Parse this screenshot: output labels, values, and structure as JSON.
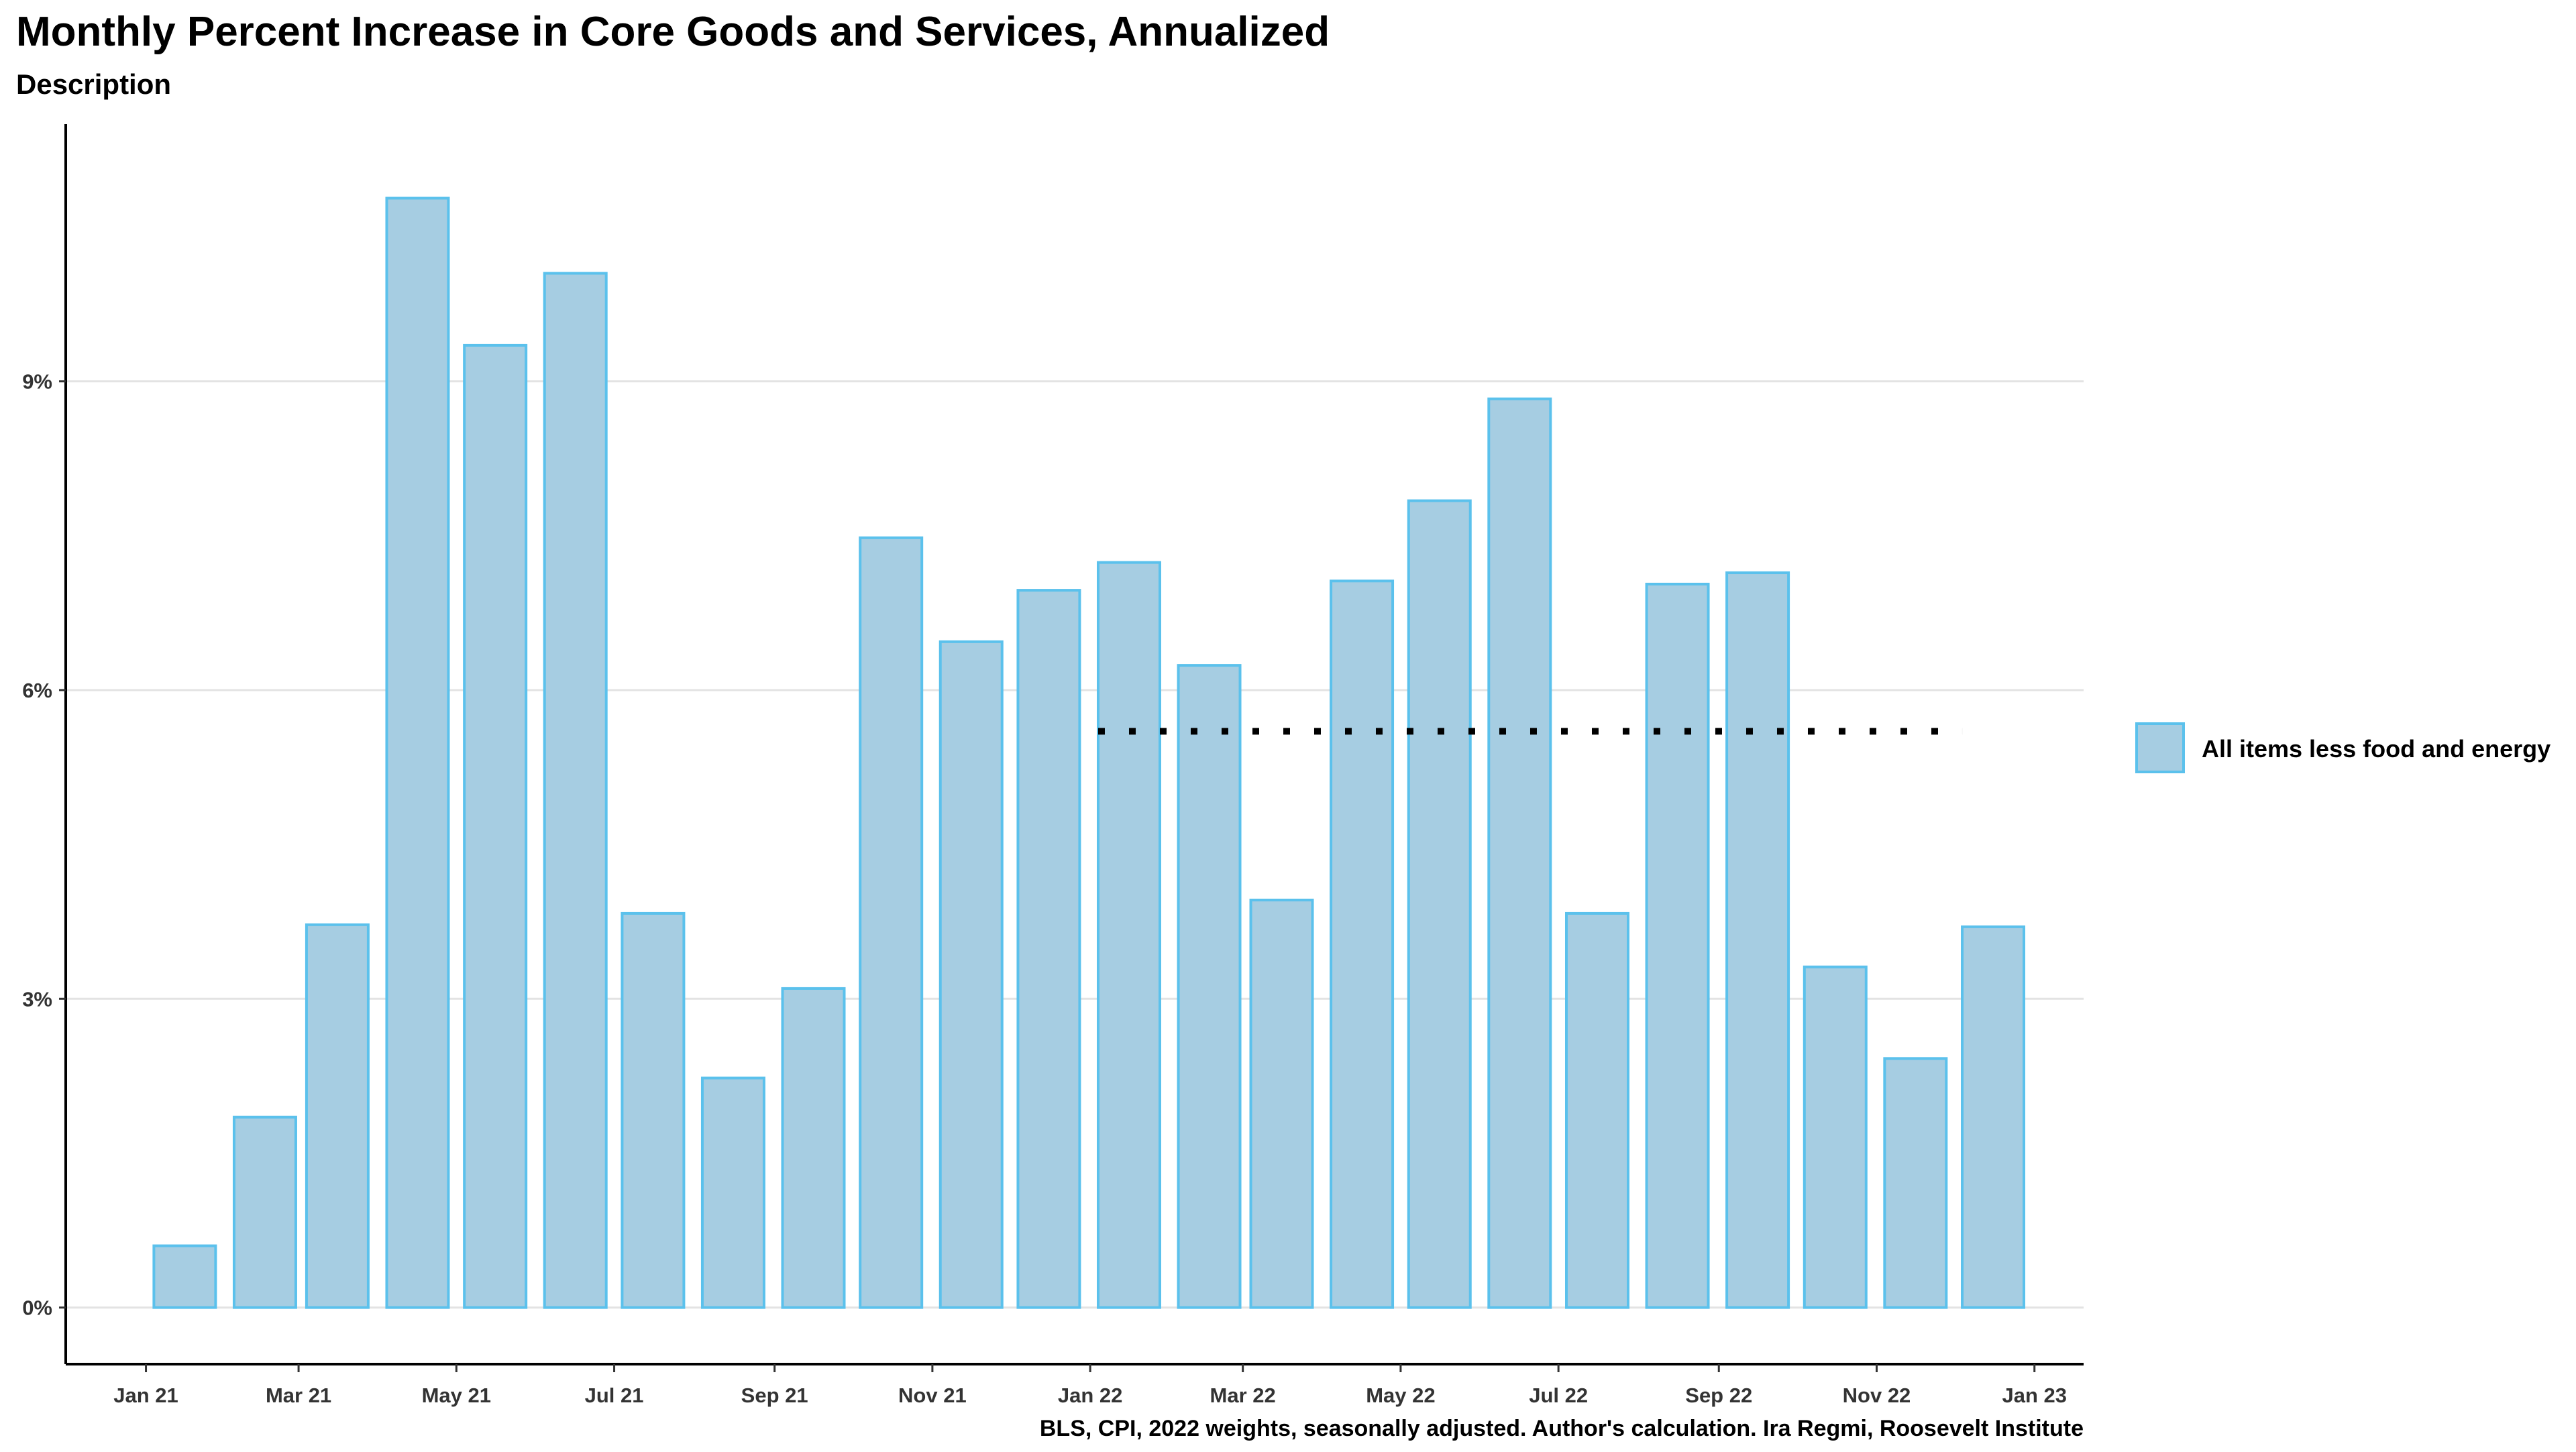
{
  "chart_data": {
    "type": "bar",
    "title": "Monthly Percent Increase in Core Goods and Services, Annualized",
    "subtitle": "Description",
    "caption": "BLS, CPI, 2022 weights, seasonally adjusted. Author's calculation. Ira Regmi, Roosevelt Institute",
    "xlabel": "",
    "ylabel": "",
    "categories": [
      "2021-01",
      "2021-02",
      "2021-03",
      "2021-04",
      "2021-05",
      "2021-06",
      "2021-07",
      "2021-08",
      "2021-09",
      "2021-10",
      "2021-11",
      "2021-12",
      "2022-01",
      "2022-02",
      "2022-03",
      "2022-04",
      "2022-05",
      "2022-06",
      "2022-07",
      "2022-08",
      "2022-09",
      "2022-10",
      "2022-11",
      "2022-12"
    ],
    "series": [
      {
        "name": "All items less food and energy",
        "values": [
          0.6,
          1.85,
          3.72,
          10.78,
          9.35,
          10.05,
          3.83,
          2.23,
          3.1,
          7.48,
          6.47,
          6.97,
          7.24,
          6.24,
          3.96,
          7.06,
          7.84,
          8.83,
          3.83,
          7.03,
          7.14,
          3.31,
          2.42,
          3.7
        ],
        "fill": "#a6cde2",
        "stroke": "#5bc1ec"
      }
    ],
    "reference_line": {
      "value": 5.6,
      "from": "2022-01",
      "to": "2022-12",
      "style": "dotted",
      "color": "#000000"
    },
    "x_ticks": [
      {
        "date": "2021-01",
        "label": "Jan 21"
      },
      {
        "date": "2021-03",
        "label": "Mar 21"
      },
      {
        "date": "2021-05",
        "label": "May 21"
      },
      {
        "date": "2021-07",
        "label": "Jul 21"
      },
      {
        "date": "2021-09",
        "label": "Sep 21"
      },
      {
        "date": "2021-11",
        "label": "Nov 21"
      },
      {
        "date": "2022-01",
        "label": "Jan 22"
      },
      {
        "date": "2022-03",
        "label": "Mar 22"
      },
      {
        "date": "2022-05",
        "label": "May 22"
      },
      {
        "date": "2022-07",
        "label": "Jul 22"
      },
      {
        "date": "2022-09",
        "label": "Sep 22"
      },
      {
        "date": "2022-11",
        "label": "Nov 22"
      },
      {
        "date": "2023-01",
        "label": "Jan 23"
      }
    ],
    "xlim": [
      "2020-12-01",
      "2023-01-20"
    ],
    "y_ticks": [
      {
        "value": 0,
        "label": "0%"
      },
      {
        "value": 3,
        "label": "3%"
      },
      {
        "value": 6,
        "label": "6%"
      },
      {
        "value": 9,
        "label": "9%"
      }
    ],
    "ylim": [
      -0.55,
      11.5
    ],
    "grid": "horizontal",
    "legend_position": "right"
  }
}
